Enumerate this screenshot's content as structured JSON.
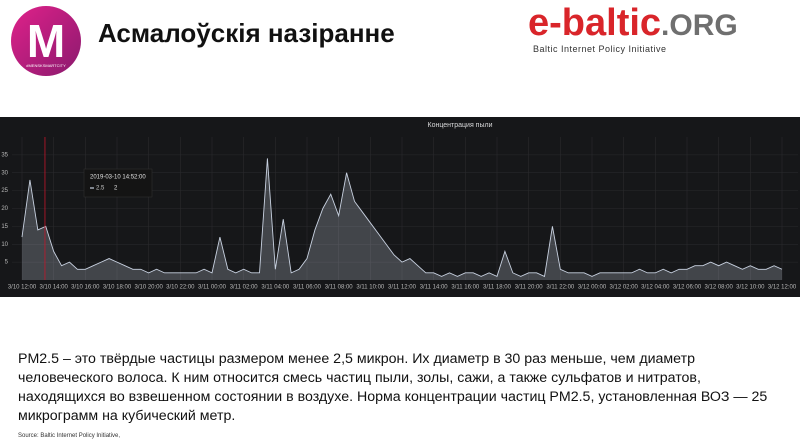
{
  "header": {
    "logo_letter": "M",
    "logo_text": "#MENSKSMARTCITY",
    "title": "Асмалоўскія назіранне",
    "brand": "e-baltic",
    "brand_suffix": ".ORG",
    "brand_subtitle": "Baltic Internet Policy Initiative"
  },
  "chart_data": {
    "type": "line",
    "title": "Концентрация пыли",
    "categories": [
      "3/10 12:00",
      null,
      null,
      null,
      "3/10 14:00",
      null,
      null,
      null,
      "3/10 16:00",
      null,
      null,
      null,
      "3/10 18:00",
      null,
      null,
      null,
      "3/10 20:00",
      null,
      null,
      null,
      "3/10 22:00",
      null,
      null,
      null,
      "3/11 00:00",
      null,
      null,
      null,
      "3/11 02:00",
      null,
      null,
      null,
      "3/11 04:00",
      null,
      null,
      null,
      "3/11 06:00",
      null,
      null,
      null,
      "3/11 08:00",
      null,
      null,
      null,
      "3/11 10:00",
      null,
      null,
      null,
      "3/11 12:00",
      null,
      null,
      null,
      "3/11 14:00",
      null,
      null,
      null,
      "3/11 16:00",
      null,
      null,
      null,
      "3/11 18:00",
      null,
      null,
      null,
      "3/11 20:00",
      null,
      null,
      null,
      "3/11 22:00",
      null,
      null,
      null,
      "3/12 00:00",
      null,
      null,
      null,
      "3/12 02:00",
      null,
      null,
      null,
      "3/12 04:00",
      null,
      null,
      null,
      "3/12 06:00",
      null,
      null,
      null,
      "3/12 08:00",
      null,
      null,
      null,
      "3/12 10:00",
      null,
      null,
      null,
      "3/12 12:00"
    ],
    "series": [
      {
        "name": "2.5",
        "color": "#c8d1e0",
        "values": [
          12,
          28,
          14,
          15,
          8,
          4,
          5,
          3,
          3,
          4,
          5,
          6,
          5,
          4,
          3,
          3,
          2,
          3,
          2,
          2,
          2,
          2,
          2,
          3,
          2,
          12,
          3,
          2,
          3,
          2,
          2,
          34,
          3,
          17,
          2,
          3,
          6,
          14,
          20,
          24,
          18,
          30,
          22,
          19,
          16,
          13,
          10,
          7,
          5,
          6,
          4,
          2,
          2,
          1,
          2,
          1,
          2,
          2,
          1,
          2,
          1,
          8,
          2,
          1,
          2,
          2,
          1,
          15,
          3,
          2,
          2,
          2,
          1,
          2,
          2,
          2,
          2,
          2,
          3,
          2,
          2,
          3,
          2,
          3,
          3,
          4,
          4,
          5,
          4,
          5,
          4,
          3,
          4,
          3,
          3,
          4,
          3
        ]
      }
    ],
    "ylim": [
      0,
      40
    ],
    "yticks": [
      5,
      10,
      15,
      20,
      25,
      30,
      35
    ],
    "grid": true,
    "tooltip": {
      "time": "2019-03-10 14:52:00",
      "value": 2
    }
  },
  "body": {
    "text": "PM2.5 – это твёрдые частицы размером менее 2,5 микрон. Их диаметр в 30 раз меньше, чем диаметр человеческого волоса. К ним относится смесь частиц пыли, золы, сажи, а также сульфатов и нитратов, находящихся во взвешенном состоянии в воздухе. Норма концентрации частиц PM2.5,  установленная ВОЗ  — 25 микрограмм на кубический метр."
  },
  "source": "Source: Baltic Internet Policy Initiative,"
}
